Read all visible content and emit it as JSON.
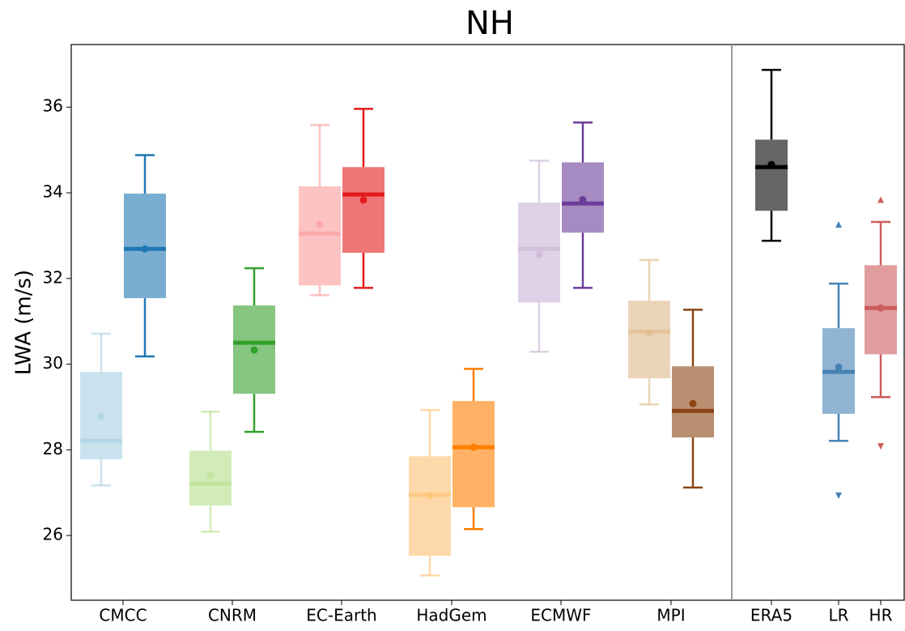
{
  "chart_data": {
    "type": "box",
    "title": "NH",
    "y_label": "LWA (m/s)",
    "ylim": [
      24.49,
      37.46
    ],
    "yticks": [
      26,
      28,
      30,
      32,
      34,
      36
    ],
    "categories": [
      {
        "label": "CMCC",
        "boxes": [
          {
            "color": "#a6cee3",
            "whislo": 27.17,
            "q1": 27.78,
            "med": 28.21,
            "q3": 29.82,
            "whishi": 30.71,
            "mean": 28.78
          },
          {
            "color": "#1f78b4",
            "whislo": 30.18,
            "q1": 31.54,
            "med": 32.69,
            "q3": 33.98,
            "whishi": 34.88,
            "mean": 32.69
          }
        ]
      },
      {
        "label": "CNRM",
        "boxes": [
          {
            "color": "#b2df8a",
            "whislo": 26.09,
            "q1": 26.7,
            "med": 27.21,
            "q3": 27.98,
            "whishi": 28.89,
            "mean": 27.4
          },
          {
            "color": "#33a02c",
            "whislo": 28.42,
            "q1": 29.31,
            "med": 30.5,
            "q3": 31.37,
            "whishi": 32.24,
            "mean": 30.33
          }
        ]
      },
      {
        "label": "EC-Earth",
        "boxes": [
          {
            "color": "#fb9a99",
            "whislo": 31.61,
            "q1": 31.84,
            "med": 33.05,
            "q3": 34.15,
            "whishi": 35.58,
            "mean": 33.26
          },
          {
            "color": "#e31a1c",
            "whislo": 31.78,
            "q1": 32.6,
            "med": 33.96,
            "q3": 34.6,
            "whishi": 35.96,
            "mean": 33.83
          }
        ]
      },
      {
        "label": "HadGem",
        "boxes": [
          {
            "color": "#fdbf6f",
            "whislo": 25.07,
            "q1": 25.53,
            "med": 26.95,
            "q3": 27.85,
            "whishi": 28.93,
            "mean": 26.93
          },
          {
            "color": "#ff7f00",
            "whislo": 26.15,
            "q1": 26.66,
            "med": 28.06,
            "q3": 29.14,
            "whishi": 29.89,
            "mean": 28.06
          }
        ]
      },
      {
        "label": "ECMWF",
        "boxes": [
          {
            "color": "#cab2d6",
            "whislo": 30.29,
            "q1": 31.44,
            "med": 32.69,
            "q3": 33.77,
            "whishi": 34.75,
            "mean": 32.56
          },
          {
            "color": "#6a3d9a",
            "whislo": 31.78,
            "q1": 33.07,
            "med": 33.75,
            "q3": 34.71,
            "whishi": 35.64,
            "mean": 33.84
          }
        ]
      },
      {
        "label": "MPI",
        "boxes": [
          {
            "color": "#deb887",
            "whislo": 29.06,
            "q1": 29.67,
            "med": 30.76,
            "q3": 31.48,
            "whishi": 32.43,
            "mean": 30.73
          },
          {
            "color": "#8b4513",
            "whislo": 27.12,
            "q1": 28.29,
            "med": 28.91,
            "q3": 29.95,
            "whishi": 31.27,
            "mean": 29.08
          }
        ]
      },
      {
        "label": "ERA5",
        "boxes": [
          {
            "color": "#000000",
            "whislo": 32.88,
            "q1": 33.58,
            "med": 34.6,
            "q3": 35.24,
            "whishi": 36.87,
            "mean": 34.66
          }
        ]
      },
      {
        "label": "LR",
        "boxes": [
          {
            "color": "#4682b4",
            "whislo": 28.21,
            "q1": 28.84,
            "med": 29.82,
            "q3": 30.84,
            "whishi": 31.88,
            "mean": 29.93,
            "fliers": [
              33.26,
              26.93
            ]
          }
        ]
      },
      {
        "label": "HR",
        "boxes": [
          {
            "color": "#cd5c5c",
            "whislo": 29.23,
            "q1": 30.23,
            "med": 31.31,
            "q3": 32.31,
            "whishi": 33.32,
            "mean": 31.31,
            "fliers": [
              33.84,
              28.08
            ]
          }
        ]
      }
    ]
  }
}
